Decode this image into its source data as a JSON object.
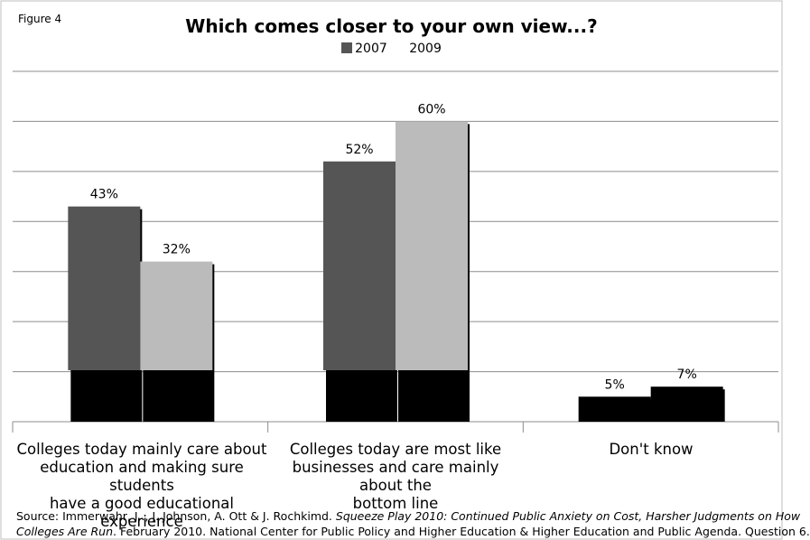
{
  "figure_label": "Figure 4",
  "chart_data": {
    "type": "bar",
    "title": "Which comes closer to your own view...?",
    "categories": [
      "Colleges today mainly care about education and making sure students have a good educational experience",
      "Colleges today are most like businesses and care mainly about the bottom line",
      "Don't know"
    ],
    "category_lines": [
      [
        "Colleges today mainly care about",
        "education and making sure students",
        "have a good educational experience"
      ],
      [
        "Colleges today are most like",
        "businesses and care mainly about the",
        "bottom line"
      ],
      [
        "Don't know"
      ]
    ],
    "series": [
      {
        "name": "2007",
        "values": [
          43,
          52,
          5
        ],
        "labels": [
          "43%",
          "52%",
          "5%"
        ]
      },
      {
        "name": "2009",
        "values": [
          32,
          60,
          7
        ],
        "labels": [
          "32%",
          "60%",
          "7%"
        ]
      }
    ],
    "legend": [
      "2007",
      "2009"
    ],
    "legend_position": "top-center",
    "ylim": [
      0,
      70
    ],
    "grid": true,
    "colors": {
      "2007": "#555555",
      "2009": "#bbbbbb",
      "depth": "#000000"
    }
  },
  "source": {
    "prefix": "Source: Immerwahr,  J.., J. Johnson, A. Ott & J. Rochkimd.  ",
    "title_italic_1": "Squeeze Play 2010: Continued Public Anxiety on Cost, Harsher Judgments on How",
    "title_italic_2": "Colleges Are Run",
    "suffix": ".  February 2010.  National Center  for Public Policy and Higher Education & Higher Education and Public Agenda. Question 6."
  }
}
